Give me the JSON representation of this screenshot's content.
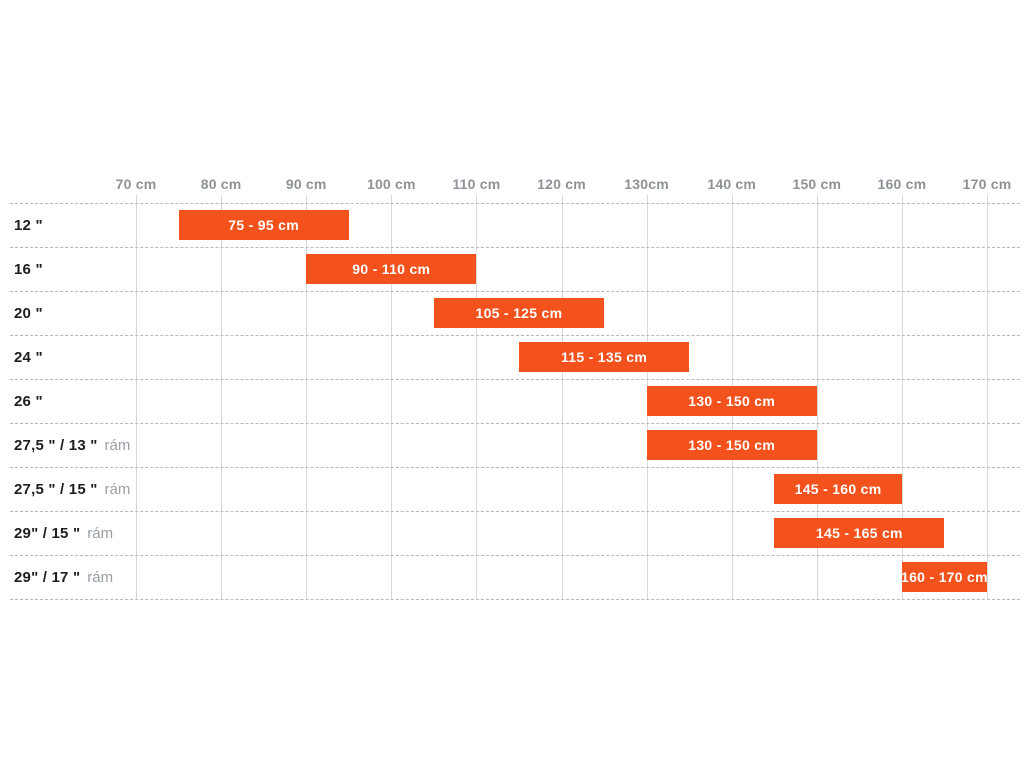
{
  "chart_data": {
    "type": "bar",
    "variant": "horizontal-range-gantt",
    "title": "",
    "x_unit": "cm",
    "x_tick_labels": [
      "70 cm",
      "80 cm",
      "90 cm",
      "100 cm",
      "110 cm",
      "120 cm",
      "130cm",
      "140 cm",
      "150 cm",
      "160 cm",
      "170 cm"
    ],
    "x_tick_values": [
      70,
      80,
      90,
      100,
      110,
      120,
      130,
      140,
      150,
      160,
      170
    ],
    "xlim": [
      70,
      170
    ],
    "grid": "on",
    "legend": "none",
    "rows": [
      {
        "size": "12 \"",
        "suffix": "",
        "range_start": 75,
        "range_end": 95,
        "bar_label": "75 - 95 cm"
      },
      {
        "size": "16 \"",
        "suffix": "",
        "range_start": 90,
        "range_end": 110,
        "bar_label": "90 - 110 cm"
      },
      {
        "size": "20 \"",
        "suffix": "",
        "range_start": 105,
        "range_end": 125,
        "bar_label": "105 - 125 cm"
      },
      {
        "size": "24 \"",
        "suffix": "",
        "range_start": 115,
        "range_end": 135,
        "bar_label": "115 - 135 cm"
      },
      {
        "size": "26 \"",
        "suffix": "",
        "range_start": 130,
        "range_end": 150,
        "bar_label": "130 - 150 cm"
      },
      {
        "size": "27,5 \" / 13 \"",
        "suffix": "rám",
        "range_start": 130,
        "range_end": 150,
        "bar_label": "130 - 150 cm"
      },
      {
        "size": "27,5 \" / 15 \"",
        "suffix": "rám",
        "range_start": 145,
        "range_end": 160,
        "bar_label": "145 - 160 cm"
      },
      {
        "size": "29\" / 15 \"",
        "suffix": "rám",
        "range_start": 145,
        "range_end": 165,
        "bar_label": "145 - 165 cm"
      },
      {
        "size": "29\" / 17 \"",
        "suffix": "rám",
        "range_start": 160,
        "range_end": 170,
        "bar_label": "160 - 170 cm"
      }
    ],
    "colors": {
      "bar": "#F4521C",
      "bar_text": "#FFFFFF",
      "axis_text": "#8D9298",
      "row_label_text": "#1E1E1E",
      "row_suffix_text": "#9AA0A6",
      "vertical_gridline": "#D9D9D9",
      "horizontal_dashed_line": "#B9B9B9",
      "background": "#FFFFFF"
    }
  }
}
